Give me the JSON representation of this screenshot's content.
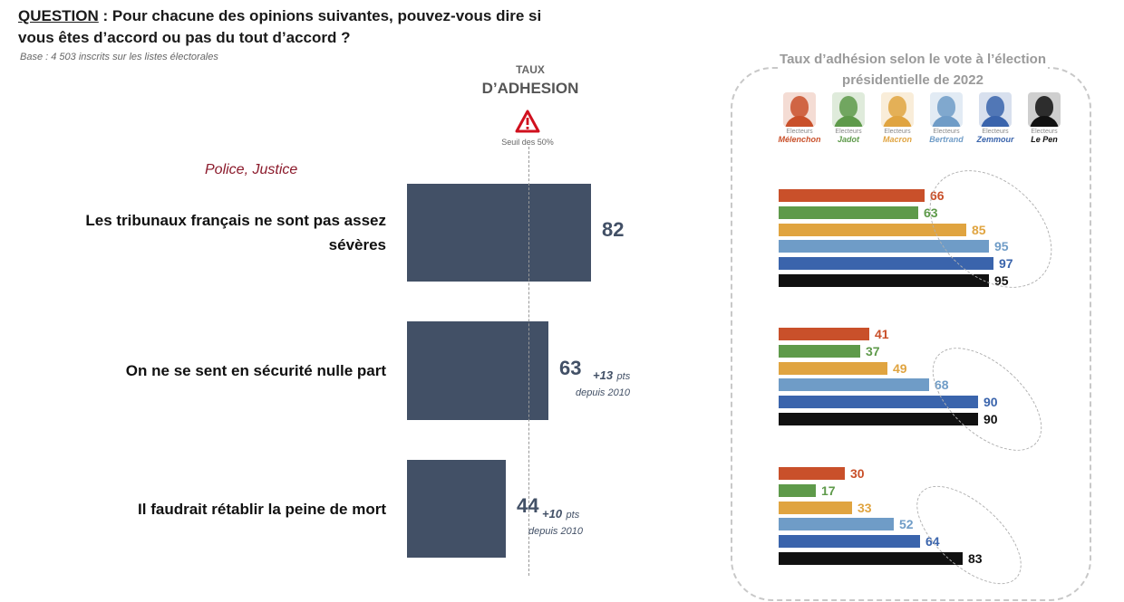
{
  "header": {
    "question_label": "QUESTION",
    "question_text": " : Pour chacune des opinions suivantes, pouvez-vous dire si vous êtes d’accord ou pas du tout d’accord ?",
    "base": "Base :  4 503 inscrits sur les listes électorales"
  },
  "taux": {
    "small": "TAUX",
    "big": "D’ADHESION",
    "seuil": "Seuil des 50%",
    "threshold": 50
  },
  "category": "Police, Justice",
  "panel": {
    "title": "Taux d’adhésion selon le vote à l’élection présidentielle de 2022"
  },
  "colors": {
    "main_bar": "#425066",
    "Mélenchon": "#c9502a",
    "Jadot": "#5e9a4a",
    "Macron": "#e0a440",
    "Bertrand": "#6f9cc7",
    "Zemmour": "#3a64ac",
    "Le Pen": "#111111"
  },
  "candidates": [
    {
      "small": "Electeurs",
      "name": "Mélenchon",
      "color": "#c9502a",
      "icon": "portrait-icon"
    },
    {
      "small": "Electeurs",
      "name": "Jadot",
      "color": "#5e9a4a",
      "icon": "portrait-icon"
    },
    {
      "small": "Electeurs",
      "name": "Macron",
      "color": "#e0a440",
      "icon": "portrait-icon"
    },
    {
      "small": "Electeurs",
      "name": "Bertrand",
      "color": "#6f9cc7",
      "icon": "portrait-icon"
    },
    {
      "small": "Electeurs",
      "name": "Zemmour",
      "color": "#3a64ac",
      "icon": "portrait-icon"
    },
    {
      "small": "Electeurs",
      "name": "Le Pen",
      "color": "#111111",
      "icon": "portrait-icon"
    }
  ],
  "chart_data": [
    {
      "type": "bar",
      "orientation": "horizontal",
      "categories": [
        "Les tribunaux français ne sont pas assez sévères",
        "On ne se sent en sécurité nulle part",
        "Il faudrait rétablir la peine de mort"
      ],
      "values": [
        82,
        63,
        44
      ],
      "value_labels": [
        "82",
        "63",
        "44"
      ],
      "deltas": [
        null,
        {
          "value": "+13",
          "unit": "pts",
          "since": "depuis 2010"
        },
        {
          "value": "+10",
          "unit": "pts",
          "since": "depuis 2010"
        }
      ],
      "reference_line": 50,
      "xlim": [
        0,
        100
      ]
    },
    {
      "type": "bar",
      "orientation": "horizontal",
      "title": "Taux d’adhésion selon le vote à l’élection présidentielle de 2022",
      "series_names": [
        "Mélenchon",
        "Jadot",
        "Macron",
        "Bertrand",
        "Zemmour",
        "Le Pen"
      ],
      "groups": [
        {
          "statement": "Les tribunaux français ne sont pas assez sévères",
          "values": [
            66,
            63,
            85,
            95,
            97,
            95
          ]
        },
        {
          "statement": "On ne se sent en sécurité nulle part",
          "values": [
            41,
            37,
            49,
            68,
            90,
            90
          ]
        },
        {
          "statement": "Il faudrait rétablir la peine de mort",
          "values": [
            30,
            17,
            33,
            52,
            64,
            83
          ]
        }
      ],
      "xlim": [
        0,
        100
      ]
    }
  ]
}
